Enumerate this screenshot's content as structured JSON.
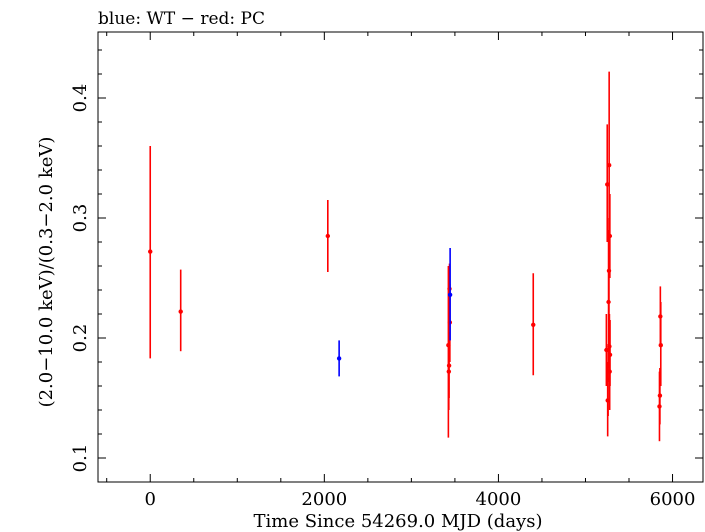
{
  "chart_data": {
    "type": "scatter",
    "title": "blue: WT − red: PC",
    "xlabel": "Time Since 54269.0 MJD (days)",
    "ylabel": "(2.0−10.0 keV)/(0.3−2.0 keV)",
    "xlim": [
      -600,
      6350
    ],
    "ylim": [
      0.08,
      0.455
    ],
    "x_ticks": [
      0,
      2000,
      4000,
      6000
    ],
    "x_tick_labels": [
      "0",
      "2000",
      "4000",
      "6000"
    ],
    "y_ticks": [
      0.1,
      0.2,
      0.3,
      0.4
    ],
    "y_tick_labels": [
      "0.1",
      "0.2",
      "0.3",
      "0.4"
    ],
    "grid": false,
    "series": [
      {
        "name": "WT",
        "color": "#0000ff",
        "points": [
          {
            "x": 2170,
            "y": 0.183,
            "ylo": 0.168,
            "yhi": 0.198
          },
          {
            "x": 3445,
            "y": 0.236,
            "ylo": 0.198,
            "yhi": 0.275
          }
        ]
      },
      {
        "name": "PC",
        "color": "#ff0000",
        "points": [
          {
            "x": 0,
            "y": 0.272,
            "ylo": 0.183,
            "yhi": 0.36
          },
          {
            "x": 350,
            "y": 0.222,
            "ylo": 0.189,
            "yhi": 0.257
          },
          {
            "x": 2040,
            "y": 0.285,
            "ylo": 0.255,
            "yhi": 0.315
          },
          {
            "x": 3425,
            "y": 0.194,
            "ylo": 0.117,
            "yhi": 0.26
          },
          {
            "x": 3430,
            "y": 0.172,
            "ylo": 0.14,
            "yhi": 0.2
          },
          {
            "x": 3433,
            "y": 0.177,
            "ylo": 0.15,
            "yhi": 0.205
          },
          {
            "x": 3438,
            "y": 0.241,
            "ylo": 0.215,
            "yhi": 0.262
          },
          {
            "x": 3442,
            "y": 0.213,
            "ylo": 0.18,
            "yhi": 0.245
          },
          {
            "x": 4400,
            "y": 0.211,
            "ylo": 0.169,
            "yhi": 0.254
          },
          {
            "x": 5240,
            "y": 0.19,
            "ylo": 0.16,
            "yhi": 0.22
          },
          {
            "x": 5250,
            "y": 0.328,
            "ylo": 0.28,
            "yhi": 0.378
          },
          {
            "x": 5255,
            "y": 0.148,
            "ylo": 0.118,
            "yhi": 0.18
          },
          {
            "x": 5260,
            "y": 0.165,
            "ylo": 0.135,
            "yhi": 0.195
          },
          {
            "x": 5265,
            "y": 0.23,
            "ylo": 0.175,
            "yhi": 0.29
          },
          {
            "x": 5270,
            "y": 0.256,
            "ylo": 0.22,
            "yhi": 0.3
          },
          {
            "x": 5272,
            "y": 0.344,
            "ylo": 0.27,
            "yhi": 0.422
          },
          {
            "x": 5275,
            "y": 0.193,
            "ylo": 0.165,
            "yhi": 0.22
          },
          {
            "x": 5278,
            "y": 0.172,
            "ylo": 0.14,
            "yhi": 0.205
          },
          {
            "x": 5280,
            "y": 0.285,
            "ylo": 0.25,
            "yhi": 0.32
          },
          {
            "x": 5282,
            "y": 0.186,
            "ylo": 0.16,
            "yhi": 0.215
          },
          {
            "x": 5850,
            "y": 0.143,
            "ylo": 0.114,
            "yhi": 0.172
          },
          {
            "x": 5855,
            "y": 0.152,
            "ylo": 0.128,
            "yhi": 0.175
          },
          {
            "x": 5860,
            "y": 0.218,
            "ylo": 0.193,
            "yhi": 0.243
          },
          {
            "x": 5865,
            "y": 0.194,
            "ylo": 0.16,
            "yhi": 0.23
          }
        ]
      }
    ]
  }
}
